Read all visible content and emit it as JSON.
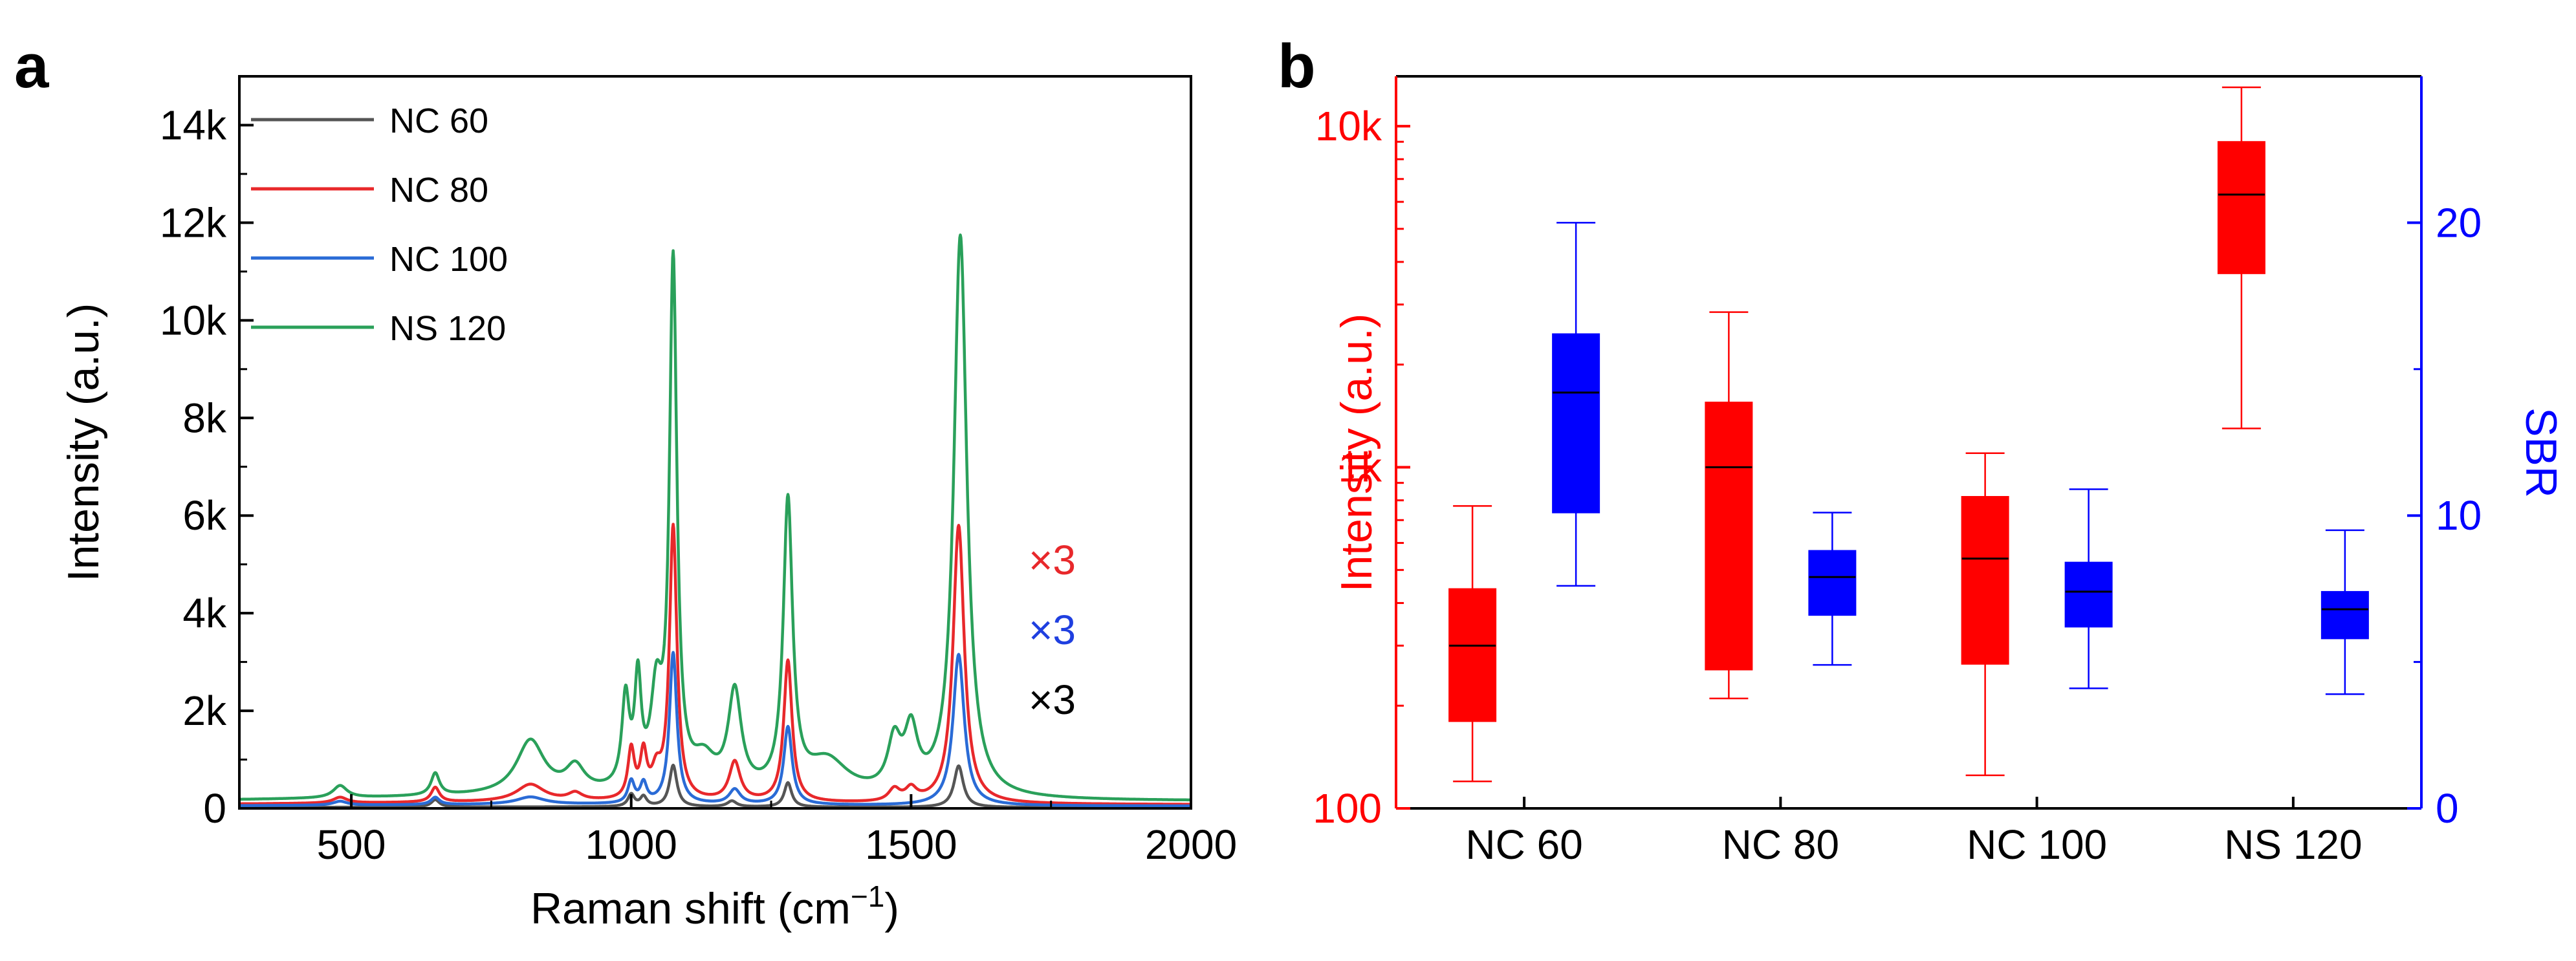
{
  "panel_labels": {
    "a": "a",
    "b": "b"
  },
  "chart_data": [
    {
      "type": "line",
      "panel": "a",
      "title": "",
      "xlabel": "Raman shift (cm",
      "xlabel_sup": "−1",
      "xlabel_end": ")",
      "ylabel": "Intensity (a.u.)",
      "xlim": [
        300,
        2000
      ],
      "ylim": [
        0,
        15000
      ],
      "x_ticks": [
        500,
        1000,
        1500,
        2000
      ],
      "x_tick_labels": [
        "500",
        "1000",
        "1500",
        "2000"
      ],
      "y_ticks": [
        0,
        2000,
        4000,
        6000,
        8000,
        10000,
        12000,
        14000
      ],
      "y_tick_labels": [
        "0",
        "2k",
        "4k",
        "6k",
        "8k",
        "10k",
        "12k",
        "14k"
      ],
      "legend_position": "top-left",
      "annotations": [
        {
          "text": "×3",
          "color": "#e8282b"
        },
        {
          "text": "×3",
          "color": "#1f3fe0"
        },
        {
          "text": "×3",
          "color": "#000000"
        }
      ],
      "series": [
        {
          "name": "NC 60",
          "color": "#555555",
          "baseline": 30,
          "peaks": [
            [
              650,
              150,
              9
            ],
            [
              1000,
              250,
              7
            ],
            [
              1022,
              200,
              7
            ],
            [
              1075,
              850,
              8
            ],
            [
              1180,
              120,
              10
            ],
            [
              1280,
              500,
              8
            ],
            [
              1585,
              850,
              10
            ]
          ]
        },
        {
          "name": "NC 80",
          "color": "#e8282b",
          "baseline": 130,
          "peaks": [
            [
              480,
              120,
              15
            ],
            [
              650,
              300,
              9
            ],
            [
              820,
              350,
              30
            ],
            [
              900,
              150,
              15
            ],
            [
              1000,
              1000,
              7
            ],
            [
              1022,
              900,
              7
            ],
            [
              1045,
              500,
              10
            ],
            [
              1075,
              5600,
              8
            ],
            [
              1185,
              800,
              12
            ],
            [
              1280,
              2900,
              9
            ],
            [
              1470,
              250,
              12
            ],
            [
              1500,
              250,
              12
            ],
            [
              1585,
              5700,
              12
            ]
          ]
        },
        {
          "name": "NC 100",
          "color": "#2a6bd6",
          "baseline": 80,
          "peaks": [
            [
              480,
              80,
              15
            ],
            [
              650,
              150,
              9
            ],
            [
              820,
              150,
              30
            ],
            [
              1000,
              450,
              7
            ],
            [
              1022,
              400,
              7
            ],
            [
              1075,
              3100,
              8
            ],
            [
              1185,
              300,
              12
            ],
            [
              1280,
              1600,
              9
            ],
            [
              1585,
              3100,
              12
            ]
          ]
        },
        {
          "name": "NS 120",
          "color": "#2aa05a",
          "baseline": 250,
          "peaks": [
            [
              480,
              250,
              15
            ],
            [
              650,
              450,
              9
            ],
            [
              820,
              1100,
              30
            ],
            [
              900,
              500,
              20
            ],
            [
              990,
              1800,
              8
            ],
            [
              1012,
              2100,
              7
            ],
            [
              1045,
              1800,
              12
            ],
            [
              1075,
              10700,
              8
            ],
            [
              1130,
              600,
              25
            ],
            [
              1185,
              2000,
              14
            ],
            [
              1280,
              5900,
              10
            ],
            [
              1350,
              700,
              45
            ],
            [
              1470,
              1000,
              14
            ],
            [
              1500,
              1200,
              14
            ],
            [
              1588,
              11500,
              14
            ]
          ]
        }
      ]
    },
    {
      "type": "box",
      "panel": "b",
      "title": "",
      "xlabel": "",
      "ylabel_left": "Intensity (a.u.)",
      "ylabel_right": "SBR",
      "ylim_left": [
        100,
        14000
      ],
      "yscale_left": "log",
      "ylim_right": [
        0,
        25
      ],
      "categories": [
        "NC 60",
        "NC 80",
        "NC 100",
        "NS 120"
      ],
      "left_ticks": [
        100,
        1000,
        10000
      ],
      "left_tick_labels": [
        "100",
        "1k",
        "10k"
      ],
      "right_ticks": [
        0,
        10,
        20
      ],
      "right_tick_labels": [
        "0",
        "10",
        "20"
      ],
      "left_color": "#ff0000",
      "right_color": "#0000ff",
      "series": [
        {
          "name": "Intensity",
          "axis": "left",
          "color": "#ff0000",
          "boxes": [
            {
              "category": "NC 60",
              "whisker_low": 120,
              "q1": 180,
              "median": 300,
              "q3": 440,
              "whisker_high": 770
            },
            {
              "category": "NC 80",
              "whisker_low": 210,
              "q1": 255,
              "median": 1000,
              "q3": 1550,
              "whisker_high": 2850
            },
            {
              "category": "NC 100",
              "whisker_low": 125,
              "q1": 265,
              "median": 540,
              "q3": 820,
              "whisker_high": 1100
            },
            {
              "category": "NS 120",
              "whisker_low": 1300,
              "q1": 3700,
              "median": 6300,
              "q3": 9000,
              "whisker_high": 13000
            }
          ]
        },
        {
          "name": "SBR",
          "axis": "right",
          "color": "#0000ff",
          "boxes": [
            {
              "category": "NC 60",
              "whisker_low": 7.6,
              "q1": 10.1,
              "median": 14.2,
              "q3": 16.2,
              "whisker_high": 20
            },
            {
              "category": "NC 80",
              "whisker_low": 4.9,
              "q1": 6.6,
              "median": 7.9,
              "q3": 8.8,
              "whisker_high": 10.1
            },
            {
              "category": "NC 100",
              "whisker_low": 4.1,
              "q1": 6.2,
              "median": 7.4,
              "q3": 8.4,
              "whisker_high": 10.9
            },
            {
              "category": "NS 120",
              "whisker_low": 3.9,
              "q1": 5.8,
              "median": 6.8,
              "q3": 7.4,
              "whisker_high": 9.5
            }
          ]
        }
      ]
    }
  ]
}
